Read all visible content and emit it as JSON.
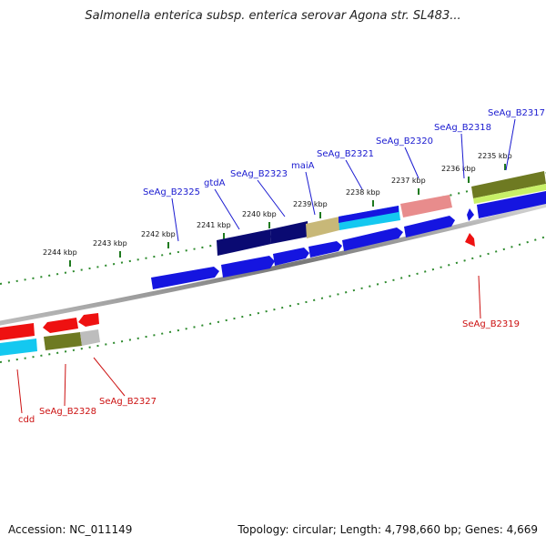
{
  "title": "Salmonella enterica subsp. enterica serovar Agona str. SL483...",
  "accession_text": "Accession: NC_011149",
  "topology_text": "Topology: circular; Length: 4,798,660 bp; Genes: 4,669",
  "colors": {
    "blue": "#1515e0",
    "navy": "#0a0a72",
    "khaki": "#c8b878",
    "cyan": "#14c8f0",
    "salmon": "#e88c8c",
    "olive": "#6e7a22",
    "lime": "#c8f068",
    "red": "#ee1111",
    "gray": "#bdbdbd",
    "tick": "#1f7a1f",
    "label_blue": "#1a1ad0",
    "label_red": "#cc1010"
  },
  "kbp_ticks": [
    {
      "label": "2235 kbp"
    },
    {
      "label": "2236 kbp"
    },
    {
      "label": "2237 kbp"
    },
    {
      "label": "2238 kbp"
    },
    {
      "label": "2239 kbp"
    },
    {
      "label": "2240 kbp"
    },
    {
      "label": "2241 kbp"
    },
    {
      "label": "2242 kbp"
    },
    {
      "label": "2243 kbp"
    },
    {
      "label": "2244 kbp"
    }
  ],
  "gene_labels": [
    {
      "name": "SeAg_B2317",
      "strand": "forward"
    },
    {
      "name": "SeAg_B2318",
      "strand": "forward"
    },
    {
      "name": "SeAg_B2320",
      "strand": "forward"
    },
    {
      "name": "SeAg_B2321",
      "strand": "forward"
    },
    {
      "name": "maiA",
      "strand": "forward"
    },
    {
      "name": "SeAg_B2323",
      "strand": "forward"
    },
    {
      "name": "gtdA",
      "strand": "forward"
    },
    {
      "name": "SeAg_B2325",
      "strand": "forward"
    },
    {
      "name": "SeAg_B2319",
      "strand": "reverse"
    },
    {
      "name": "SeAg_B2327",
      "strand": "reverse"
    },
    {
      "name": "SeAg_B2328",
      "strand": "reverse"
    },
    {
      "name": "cdd",
      "strand": "reverse"
    }
  ]
}
